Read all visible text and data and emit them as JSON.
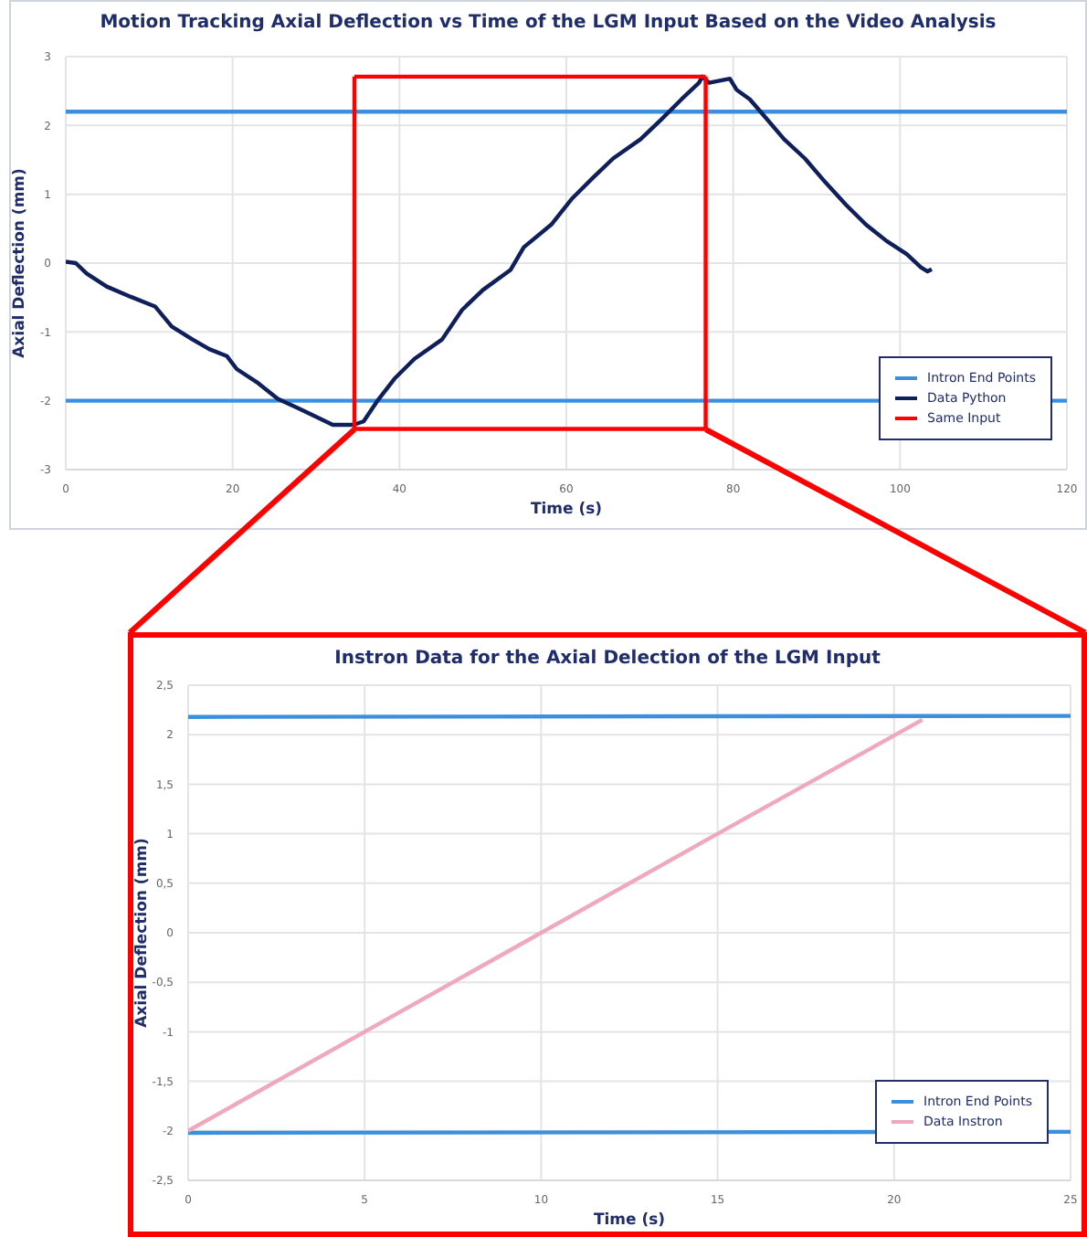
{
  "chart_data": [
    {
      "type": "line",
      "title": "Motion Tracking Axial Deflection vs Time of the LGM Input Based on the Video Analysis",
      "xlabel": "Time (s)",
      "ylabel": "Axial Deflection (mm)",
      "xlim": [
        0,
        120
      ],
      "xticks": [
        0,
        20,
        40,
        60,
        80,
        100,
        120
      ],
      "ylim": [
        -3,
        3
      ],
      "yticks": [
        -3,
        -2,
        -1,
        0,
        1,
        2,
        3
      ],
      "grid": true,
      "legend": "bottom right",
      "series": [
        {
          "name": "Intron End Points",
          "color": "#3b8fdc",
          "x": [
            0,
            120
          ],
          "values": [
            2.2,
            2.2
          ]
        },
        {
          "color": "#3b8fdc",
          "x": [
            0,
            120
          ],
          "values": [
            -2,
            -2
          ]
        },
        {
          "name": "Data Python",
          "color": "#0f1f5c",
          "x": [
            0,
            1.2,
            2.5,
            4.9,
            7.8,
            10.7,
            12.7,
            15.2,
            17.2,
            19.3,
            20.5,
            22.9,
            25.4,
            27.9,
            30.3,
            32,
            34.5,
            35.7,
            37.3,
            39.4,
            41.8,
            45.1,
            47.5,
            50,
            53.3,
            54.9,
            58.2,
            60.7,
            63.1,
            65.6,
            68.9,
            71.4,
            73.8,
            75.9,
            76.3,
            77.1,
            79.6,
            80.4,
            82,
            83.7,
            86.1,
            88.6,
            91,
            93.5,
            95.9,
            98.4,
            100.8,
            102.5,
            103.3,
            103.8
          ],
          "values": [
            0.02,
            0,
            -0.15,
            -0.34,
            -0.49,
            -0.63,
            -0.92,
            -1.11,
            -1.25,
            -1.35,
            -1.54,
            -1.73,
            -1.97,
            -2.11,
            -2.25,
            -2.35,
            -2.35,
            -2.3,
            -2.01,
            -1.68,
            -1.39,
            -1.11,
            -0.68,
            -0.39,
            -0.1,
            0.23,
            0.56,
            0.94,
            1.23,
            1.52,
            1.8,
            2.09,
            2.38,
            2.62,
            2.71,
            2.62,
            2.68,
            2.52,
            2.38,
            2.14,
            1.8,
            1.52,
            1.18,
            0.85,
            0.56,
            0.32,
            0.13,
            -0.06,
            -0.12,
            -0.09
          ]
        },
        {
          "name": "Same Input",
          "color": "#ff0000",
          "x": [
            34.6,
            76.7
          ],
          "values": [
            2.71,
            2.71
          ]
        },
        {
          "color": "#ff0000",
          "x": [
            34.6,
            76.7
          ],
          "values": [
            -2.41,
            -2.41
          ]
        },
        {
          "color": "#ff0000",
          "x": [
            34.6,
            34.6
          ],
          "values": [
            -2.41,
            2.71
          ]
        },
        {
          "color": "#ff0000",
          "x": [
            76.7,
            76.7
          ],
          "values": [
            -2.41,
            2.71
          ]
        }
      ]
    },
    {
      "type": "line",
      "title": "Instron Data for the Axial Delection of the LGM Input",
      "xlabel": "Time (s)",
      "ylabel": "Axial Deflection (mm)",
      "xlim": [
        0,
        25
      ],
      "xticks": [
        0,
        5,
        10,
        15,
        20,
        25
      ],
      "ylim": [
        -2.5,
        2.5
      ],
      "yticks": [
        {
          "value": -2.5,
          "label": "-2,5"
        },
        -2,
        {
          "value": -1.5,
          "label": "-1,5"
        },
        -1,
        {
          "value": -0.5,
          "label": "-0,5"
        },
        0,
        {
          "value": 0.5,
          "label": "0,5"
        },
        1,
        {
          "value": 1.5,
          "label": "1,5"
        },
        2,
        {
          "value": 2.5,
          "label": "2,5"
        }
      ],
      "grid": true,
      "legend": "bottom right",
      "series": [
        {
          "name": "Intron End Points",
          "color": "#3b8fdc",
          "x": [
            0,
            25
          ],
          "values": [
            2.18,
            2.19
          ]
        },
        {
          "color": "#3b8fdc",
          "x": [
            0,
            25
          ],
          "values": [
            -2.02,
            -2.01
          ]
        },
        {
          "name": "Data Instron",
          "color": "#f0a8bd",
          "x": [
            0,
            5,
            10,
            15,
            20.8
          ],
          "values": [
            -2,
            -1,
            0,
            1,
            2.15
          ]
        }
      ]
    }
  ]
}
